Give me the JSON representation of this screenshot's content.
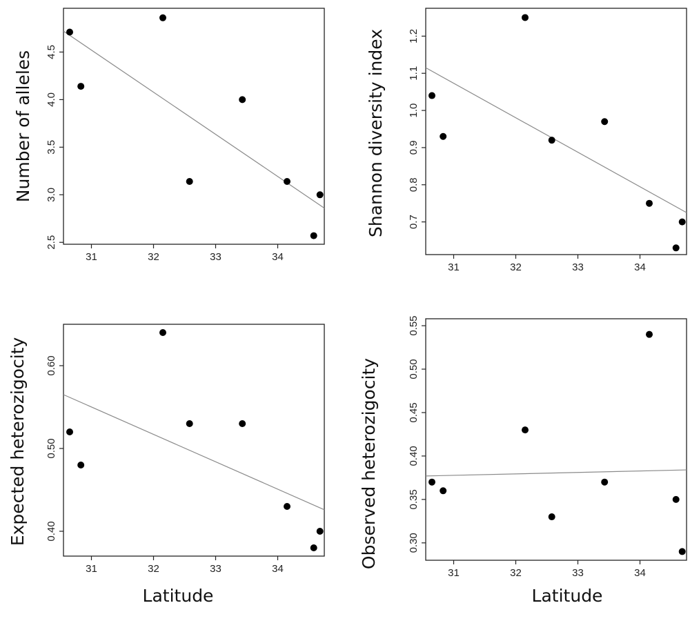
{
  "x_axis_label": "Latitude",
  "chart_data": [
    {
      "type": "scatter",
      "ylabel": "Number of alleles",
      "xlim": [
        30.55,
        34.75
      ],
      "ylim": [
        2.48,
        4.96
      ],
      "xticks": [
        "31",
        "32",
        "33",
        "34"
      ],
      "yticks": [
        "2.5",
        "3.0",
        "3.5",
        "4.0",
        "4.5"
      ],
      "x": [
        30.65,
        30.83,
        32.15,
        32.58,
        33.43,
        34.15,
        34.58,
        34.68
      ],
      "y": [
        4.71,
        4.14,
        4.86,
        3.14,
        4.0,
        3.14,
        2.57,
        3.0
      ],
      "trend_line": [
        [
          30.55,
          4.72
        ],
        [
          34.75,
          2.86
        ]
      ],
      "grid": false
    },
    {
      "type": "scatter",
      "ylabel": "Shannon diversity index",
      "xlim": [
        30.55,
        34.75
      ],
      "ylim": [
        0.612,
        1.275
      ],
      "xticks": [
        "31",
        "32",
        "33",
        "34"
      ],
      "yticks": [
        "0.7",
        "0.8",
        "0.9",
        "1.0",
        "1.1",
        "1.2"
      ],
      "x": [
        30.65,
        30.83,
        32.15,
        32.58,
        33.43,
        34.15,
        34.58,
        34.68
      ],
      "y": [
        1.04,
        0.93,
        1.25,
        0.92,
        0.97,
        0.75,
        0.63,
        0.7
      ],
      "trend_line": [
        [
          30.55,
          1.115
        ],
        [
          34.75,
          0.725
        ]
      ],
      "grid": false
    },
    {
      "type": "scatter",
      "ylabel": "Expected heterozigocity",
      "xlim": [
        30.55,
        34.75
      ],
      "ylim": [
        0.37,
        0.65
      ],
      "xticks": [
        "31",
        "32",
        "33",
        "34"
      ],
      "yticks": [
        "0.40",
        "0.50",
        "0.60"
      ],
      "x": [
        30.65,
        30.83,
        32.15,
        32.58,
        33.43,
        34.15,
        34.58,
        34.68
      ],
      "y": [
        0.52,
        0.48,
        0.64,
        0.53,
        0.53,
        0.43,
        0.38,
        0.4
      ],
      "trend_line": [
        [
          30.55,
          0.565
        ],
        [
          34.75,
          0.426
        ]
      ],
      "grid": false
    },
    {
      "type": "scatter",
      "ylabel": "Observed heterozigocity",
      "xlim": [
        30.55,
        34.75
      ],
      "ylim": [
        0.28,
        0.558
      ],
      "xticks": [
        "31",
        "32",
        "33",
        "34"
      ],
      "yticks": [
        "0.30",
        "0.35",
        "0.40",
        "0.45",
        "0.50",
        "0.55"
      ],
      "x": [
        30.65,
        30.83,
        32.15,
        32.58,
        33.43,
        34.15,
        34.58,
        34.68
      ],
      "y": [
        0.37,
        0.36,
        0.43,
        0.33,
        0.37,
        0.54,
        0.35,
        0.29
      ],
      "trend_line": [
        [
          30.55,
          0.377
        ],
        [
          34.75,
          0.384
        ]
      ],
      "grid": false
    }
  ]
}
